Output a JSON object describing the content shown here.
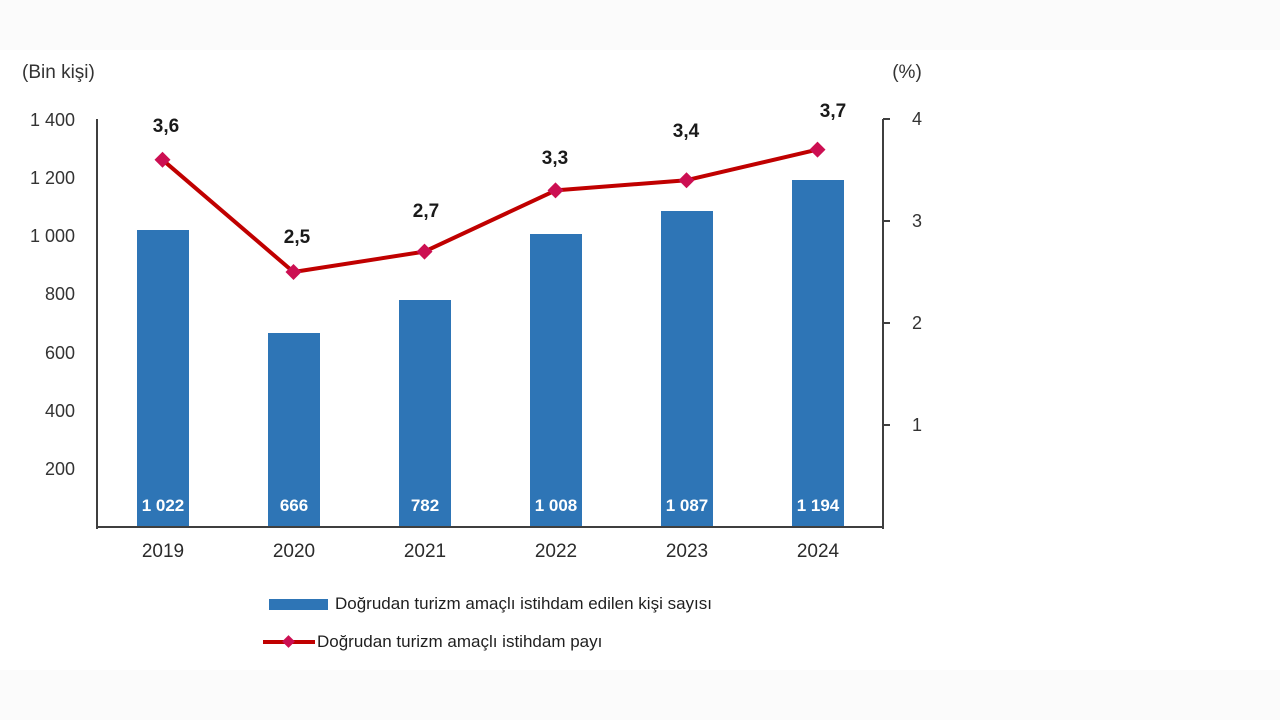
{
  "chart_data": {
    "type": "combo (bar + line, dual axis)",
    "title": "",
    "categories": [
      "2019",
      "2020",
      "2021",
      "2022",
      "2023",
      "2024"
    ],
    "series": [
      {
        "name": "Doğrudan turizm amaçlı istihdam edilen kişi sayısı",
        "type": "bar",
        "axis": "left",
        "values": [
          1022,
          666,
          782,
          1008,
          1087,
          1194
        ],
        "value_labels": [
          "1 022",
          "666",
          "782",
          "1 008",
          "1 087",
          "1 194"
        ],
        "color": "#2E75B6",
        "label_color": "#FFFFFF"
      },
      {
        "name": "Doğrudan turizm amaçlı istihdam payı",
        "type": "line",
        "axis": "right",
        "values": [
          3.6,
          2.5,
          2.7,
          3.3,
          3.4,
          3.7
        ],
        "value_labels": [
          "3,6",
          "2,5",
          "2,7",
          "3,3",
          "3,4",
          "3,7"
        ],
        "line_color": "#C00000",
        "marker": "diamond",
        "marker_color": "#CC0F52",
        "label_offsets": [
          [
            3,
            -33
          ],
          [
            3,
            -34
          ],
          [
            1,
            -40
          ],
          [
            -1,
            -31
          ],
          [
            -1,
            -48
          ],
          [
            15,
            -38
          ]
        ]
      }
    ],
    "left_axis": {
      "title": "(Bin kişi)",
      "min": 0,
      "max": 1400,
      "tick_step": 200,
      "tick_values": [
        1400,
        1200,
        1000,
        800,
        600,
        400,
        200
      ],
      "tick_labels": [
        "1 400",
        "1 200",
        "1 000",
        "800",
        "600",
        "400",
        "200"
      ]
    },
    "right_axis": {
      "title": "(%)",
      "min": 0,
      "max": 4,
      "tick_step": 1,
      "tick_values": [
        4,
        3,
        2,
        1
      ],
      "tick_labels": [
        "4",
        "3",
        "2",
        "1"
      ]
    },
    "legend": {
      "position": "bottom-left",
      "items": [
        "Doğrudan turizm amaçlı istihdam edilen kişi sayısı",
        "Doğrudan turizm amaçlı istihdam payı"
      ]
    },
    "grid": "off",
    "axis_line_color": "#3F3F3F",
    "text_color": "#333333"
  }
}
